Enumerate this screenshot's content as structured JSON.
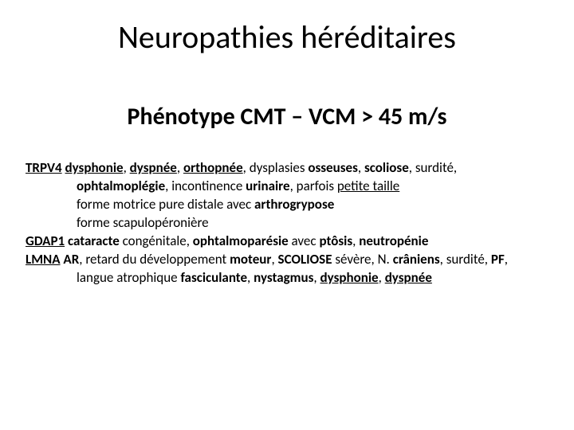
{
  "title": "Neuropathies héréditaires",
  "subtitle": "Phénotype CMT – VCM > 45 m/s",
  "colors": {
    "background": "#ffffff",
    "text": "#000000"
  },
  "typography": {
    "title_fontsize": 40,
    "subtitle_fontsize": 30,
    "body_fontsize": 17,
    "font_family": "Calibri"
  },
  "entries": {
    "trpv4": {
      "gene": "TRPV4",
      "line1": {
        "p1": "dysphonie",
        "c1": ", ",
        "p2": "dyspnée",
        "c2": ", ",
        "p3": "orthopnée",
        "c3": ", dysplasies ",
        "p4": "osseuses",
        "c4": ", ",
        "p5": "scoliose",
        "c5": ", surdité,"
      },
      "line2": {
        "p1": "ophtalmoplégie",
        "c1": ", incontinence ",
        "p2": "urinaire",
        "c2": ", parfois ",
        "p3": "petite taille"
      },
      "line3": {
        "t1": "forme motrice pure distale avec ",
        "p1": "arthrogrypose"
      },
      "line4": "forme scapulopéronière"
    },
    "gdap1": {
      "gene": "GDAP1",
      "line1": {
        "p1": "cataracte",
        "t1": " congénitale, ",
        "p2": "ophtalmoparésie",
        "t2": " avec ",
        "p3": "ptôsis",
        "c1": ", ",
        "p4": "neutropénie"
      }
    },
    "lmna": {
      "gene": "LMNA",
      "line1": {
        "p0": "AR",
        "c0": ", ",
        "t1": "retard du développement ",
        "p1": "moteur",
        "c1": ", ",
        "p2": "SCOLIOSE",
        "t2": " sévère, N. ",
        "p3": "crâniens",
        "c2": ", surdité, ",
        "p4": "PF",
        "c3": ","
      },
      "line2": {
        "t1": "langue atrophique ",
        "p1": "fasciculante",
        "c1": ", ",
        "p2": "nystagmus",
        "c2": ", ",
        "p3": "dysphonie",
        "c3": ", ",
        "p4": "dyspnée"
      }
    }
  }
}
